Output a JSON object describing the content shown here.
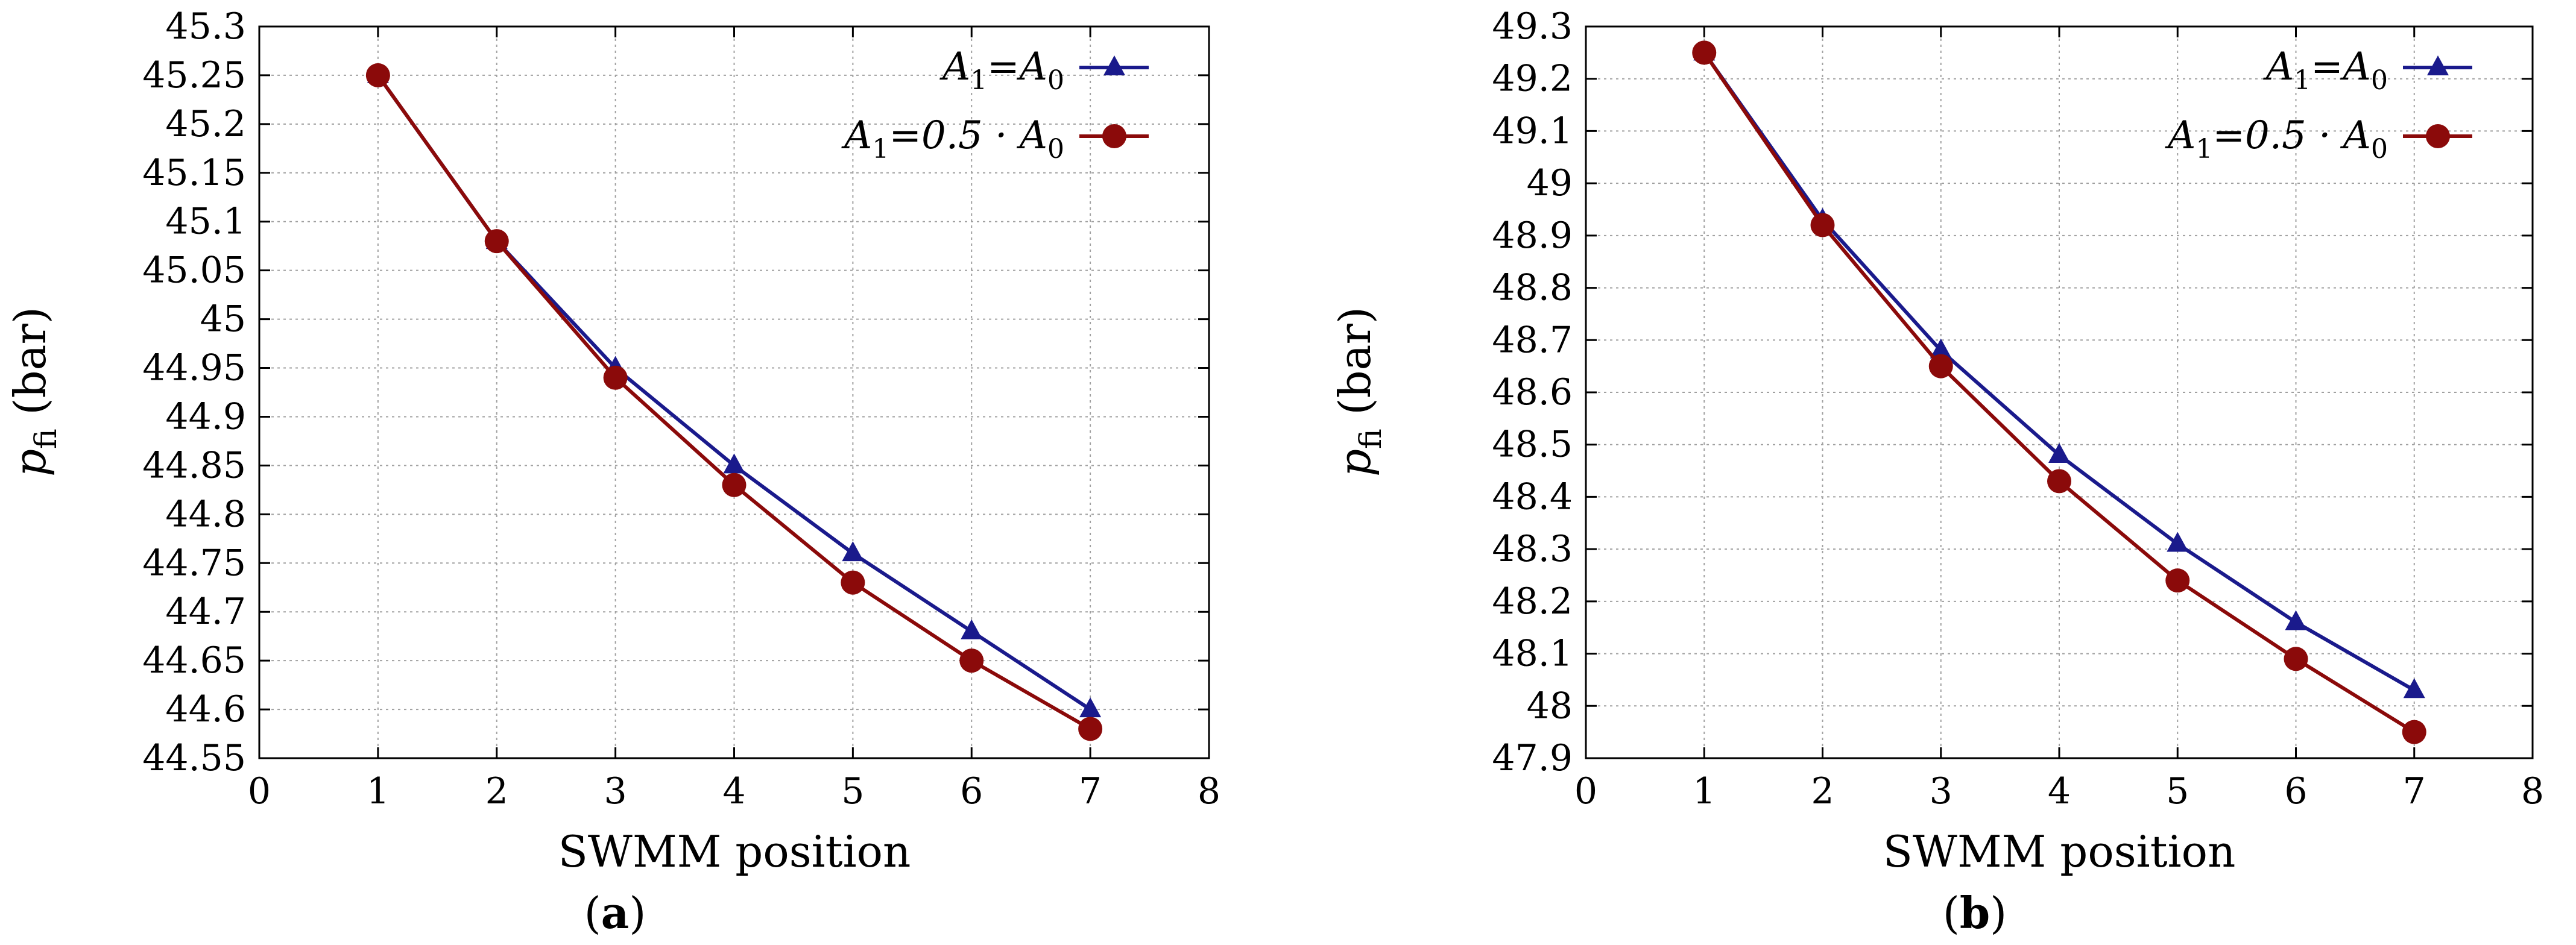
{
  "chart_data": [
    {
      "type": "line",
      "panel": "(a)",
      "panel_letter": "a",
      "xlabel": "SWMM position",
      "ylabel_main": "p",
      "ylabel_sub": "fi",
      "ylabel_unit": "(bar)",
      "xlim": [
        0,
        8
      ],
      "ylim": [
        44.55,
        45.3
      ],
      "xticks": [
        0,
        1,
        2,
        3,
        4,
        5,
        6,
        7,
        8
      ],
      "yticks": [
        44.55,
        44.6,
        44.65,
        44.7,
        44.75,
        44.8,
        44.85,
        44.9,
        44.95,
        45,
        45.05,
        45.1,
        45.15,
        45.2,
        45.25,
        45.3
      ],
      "grid": true,
      "legend_position": "top-right",
      "x": [
        1,
        2,
        3,
        4,
        5,
        6,
        7
      ],
      "series": [
        {
          "legend_a": "A",
          "legend_sub1": "1",
          "legend_rest": "=A",
          "legend_sub2": "0",
          "marker": "triangle",
          "color": "#1a1a8c",
          "values": [
            45.25,
            45.08,
            44.95,
            44.85,
            44.76,
            44.68,
            44.6
          ]
        },
        {
          "legend_a": "A",
          "legend_sub1": "1",
          "legend_rest": "=0.5 · A",
          "legend_sub2": "0",
          "marker": "circle",
          "color": "#8b0a0a",
          "values": [
            45.25,
            45.08,
            44.94,
            44.83,
            44.73,
            44.65,
            44.58
          ]
        }
      ]
    },
    {
      "type": "line",
      "panel": "(b)",
      "panel_letter": "b",
      "xlabel": "SWMM position",
      "ylabel_main": "p",
      "ylabel_sub": "fi",
      "ylabel_unit": "(bar)",
      "xlim": [
        0,
        8
      ],
      "ylim": [
        47.9,
        49.3
      ],
      "xticks": [
        0,
        1,
        2,
        3,
        4,
        5,
        6,
        7,
        8
      ],
      "yticks": [
        47.9,
        48,
        48.1,
        48.2,
        48.3,
        48.4,
        48.5,
        48.6,
        48.7,
        48.8,
        48.9,
        49,
        49.1,
        49.2,
        49.3
      ],
      "grid": true,
      "legend_position": "top-right",
      "x": [
        1,
        2,
        3,
        4,
        5,
        6,
        7
      ],
      "series": [
        {
          "legend_a": "A",
          "legend_sub1": "1",
          "legend_rest": "=A",
          "legend_sub2": "0",
          "marker": "triangle",
          "color": "#1a1a8c",
          "values": [
            49.25,
            48.93,
            48.68,
            48.48,
            48.31,
            48.16,
            48.03
          ]
        },
        {
          "legend_a": "A",
          "legend_sub1": "1",
          "legend_rest": "=0.5 · A",
          "legend_sub2": "0",
          "marker": "circle",
          "color": "#8b0a0a",
          "values": [
            49.25,
            48.92,
            48.65,
            48.43,
            48.24,
            48.09,
            47.95
          ]
        }
      ]
    }
  ]
}
